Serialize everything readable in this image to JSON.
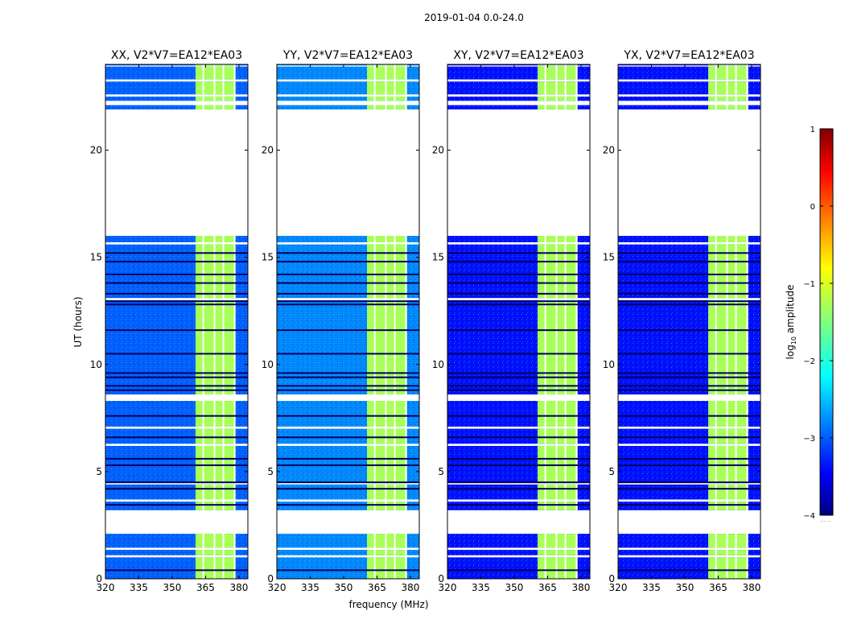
{
  "chart_data": {
    "type": "heatmap",
    "suptitle": "2019-01-04 0.0-24.0",
    "xlabel": "frequency (MHz)",
    "ylabel": "UT (hours)",
    "xlim": [
      320,
      384
    ],
    "ylim": [
      0,
      24
    ],
    "xticks": [
      320,
      335,
      350,
      365,
      380
    ],
    "yticks": [
      0,
      5,
      10,
      15,
      20
    ],
    "panels": [
      {
        "title": "XX, V2*V7=EA12*EA03",
        "base_log_amplitude": -2.9
      },
      {
        "title": "YY, V2*V7=EA12*EA03",
        "base_log_amplitude": -2.7
      },
      {
        "title": "XY, V2*V7=EA12*EA03",
        "base_log_amplitude": -3.3
      },
      {
        "title": "YX, V2*V7=EA12*EA03",
        "base_log_amplitude": -3.3
      }
    ],
    "rfi_band_mhz": [
      360.5,
      378.5
    ],
    "rfi_log_amplitude": -1.3,
    "gap_channels_mhz": [
      364,
      369,
      373,
      378
    ],
    "data_segments_hours": [
      [
        0.0,
        1.0
      ],
      [
        1.1,
        1.35
      ],
      [
        1.45,
        2.1
      ],
      [
        3.2,
        3.6
      ],
      [
        3.7,
        4.4
      ],
      [
        4.5,
        6.2
      ],
      [
        6.3,
        7.0
      ],
      [
        7.1,
        8.3
      ],
      [
        8.6,
        13.0
      ],
      [
        13.1,
        15.6
      ],
      [
        15.7,
        16.0
      ],
      [
        21.9,
        22.1
      ],
      [
        22.3,
        22.5
      ],
      [
        22.6,
        23.2
      ],
      [
        23.3,
        23.9
      ],
      [
        23.95,
        24.0
      ]
    ],
    "flag_lines_hours": [
      0.4,
      3.45,
      4.2,
      4.5,
      5.3,
      5.6,
      6.6,
      7.6,
      8.8,
      9.0,
      9.4,
      9.6,
      10.5,
      11.6,
      12.8,
      12.95,
      13.3,
      13.8,
      14.2,
      14.8,
      15.2
    ],
    "colorbar": {
      "label_main": "log",
      "label_sub": "10",
      "label_suffix": " amplitude",
      "min": -4,
      "max": 1,
      "ticks": [
        "1",
        "0",
        "−1",
        "−2",
        "−3",
        "−4"
      ],
      "tick_values": [
        1,
        0,
        -1,
        -2,
        -3,
        -4
      ],
      "footnote": "......"
    }
  }
}
